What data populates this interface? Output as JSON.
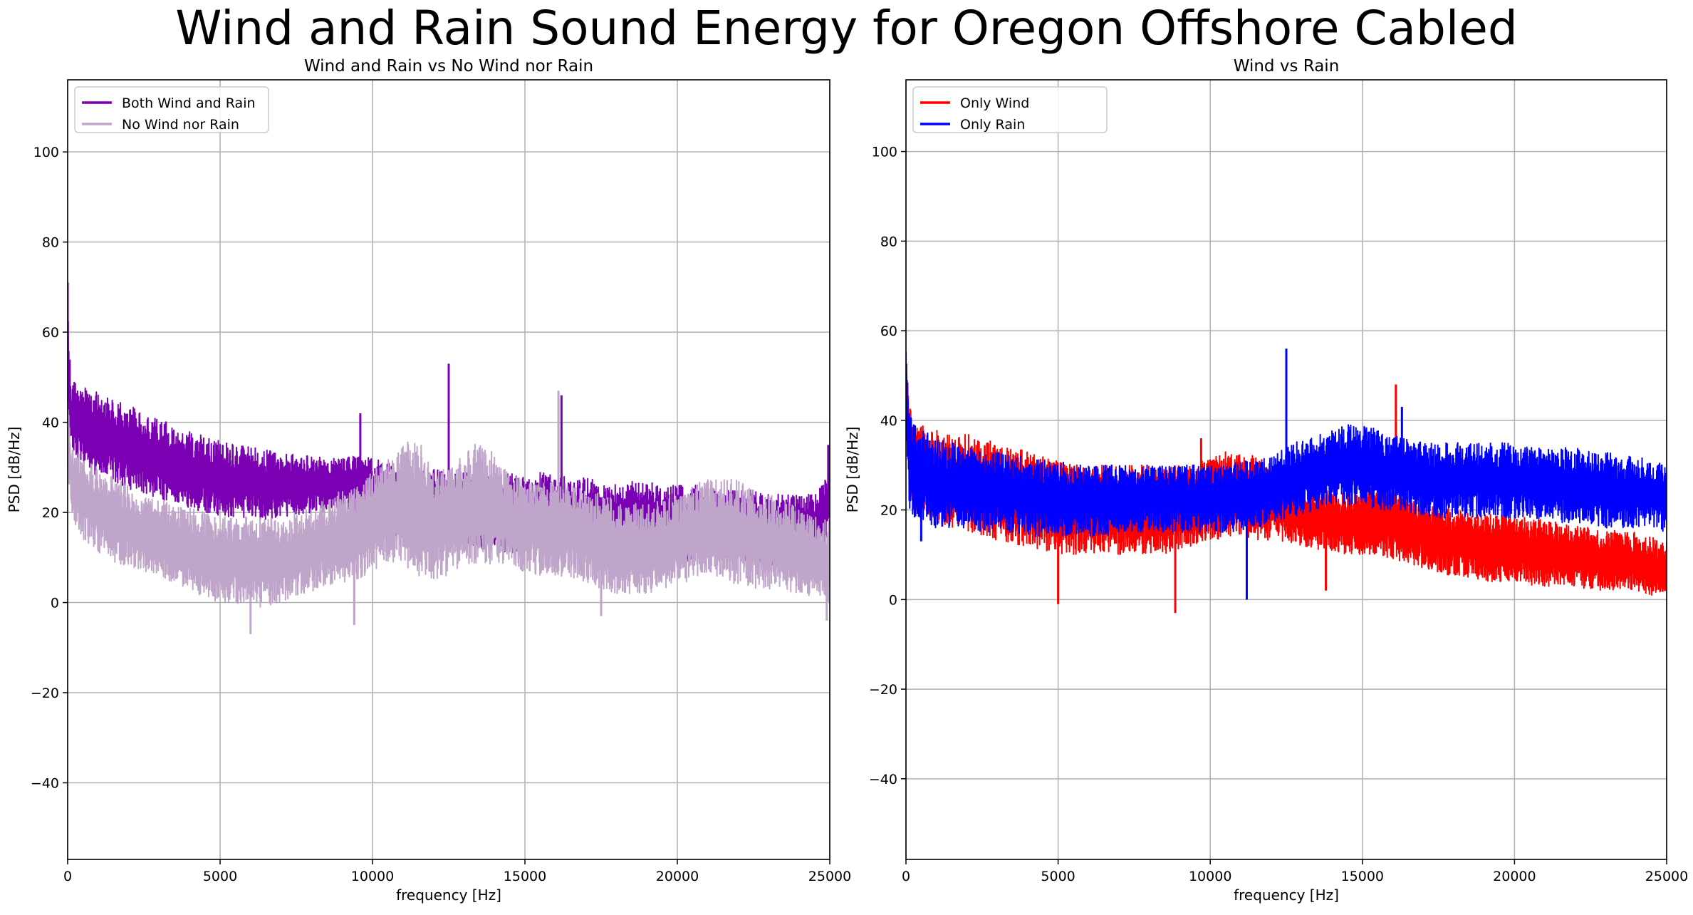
{
  "figure": {
    "suptitle": "Wind and Rain Sound Energy for Oregon Offshore Cabled"
  },
  "chart_data": [
    {
      "type": "line",
      "title": "Wind and Rain vs No Wind nor Rain",
      "xlabel": "frequency [Hz]",
      "ylabel": "PSD [dB/Hz]",
      "xlim": [
        0,
        25000
      ],
      "ylim": [
        -57,
        116
      ],
      "xticks": [
        0,
        5000,
        10000,
        15000,
        20000,
        25000
      ],
      "yticks": [
        -40,
        -20,
        0,
        20,
        40,
        60,
        80,
        100
      ],
      "grid": true,
      "legend_position": "top-left",
      "series": [
        {
          "name": "Both Wind and Rain",
          "color": "#7b00b4",
          "x": [
            0,
            100,
            200,
            500,
            1000,
            1500,
            2000,
            2500,
            3000,
            3500,
            4000,
            4500,
            5000,
            5500,
            6000,
            6500,
            7000,
            7500,
            8000,
            8500,
            9000,
            9500,
            10000,
            10500,
            11000,
            11500,
            12000,
            12500,
            13000,
            13500,
            14000,
            14500,
            15000,
            15500,
            16000,
            16500,
            17000,
            17500,
            18000,
            18500,
            19000,
            19500,
            20000,
            20500,
            21000,
            21500,
            22000,
            22500,
            23000,
            23500,
            24000,
            24500,
            25000
          ],
          "high": [
            71,
            50,
            49,
            48,
            47,
            45,
            44,
            42,
            41,
            39,
            38,
            37,
            36,
            35,
            35,
            34,
            33,
            33,
            33,
            32,
            32,
            33,
            32,
            31,
            31,
            30,
            30,
            29,
            29,
            29,
            28,
            29,
            28,
            29,
            28,
            28,
            28,
            27,
            27,
            27,
            27,
            26,
            26,
            26,
            26,
            25,
            25,
            25,
            24,
            24,
            24,
            24,
            30
          ],
          "low": [
            40,
            35,
            33,
            30,
            28,
            27,
            25,
            24,
            23,
            22,
            21,
            20,
            19,
            19,
            18,
            18,
            19,
            19,
            20,
            20,
            21,
            20,
            18,
            15,
            13,
            12,
            12,
            12,
            13,
            12,
            11,
            11,
            11,
            11,
            12,
            11,
            11,
            10,
            9,
            9,
            8,
            8,
            8,
            9,
            10,
            10,
            9,
            9,
            8,
            8,
            8,
            7,
            16
          ],
          "spikes": [
            {
              "x": 0,
              "y": 71
            },
            {
              "x": 9600,
              "y": 42
            },
            {
              "x": 12500,
              "y": 53
            },
            {
              "x": 16200,
              "y": 46
            },
            {
              "x": 24950,
              "y": 35
            }
          ]
        },
        {
          "name": "No Wind nor Rain",
          "color": "#bfa5c9",
          "x": [
            0,
            100,
            200,
            500,
            1000,
            1500,
            2000,
            2500,
            3000,
            3500,
            4000,
            4500,
            5000,
            5500,
            6000,
            6500,
            7000,
            7500,
            8000,
            8500,
            9000,
            9500,
            10000,
            10500,
            11000,
            11500,
            12000,
            12500,
            13000,
            13500,
            14000,
            14500,
            15000,
            15500,
            16000,
            16500,
            17000,
            17500,
            18000,
            18500,
            19000,
            19500,
            20000,
            20500,
            21000,
            21500,
            22000,
            22500,
            23000,
            23500,
            24000,
            24500,
            25000
          ],
          "high": [
            45,
            38,
            35,
            33,
            30,
            28,
            26,
            24,
            23,
            22,
            21,
            20,
            19,
            19,
            19,
            19,
            19,
            20,
            21,
            23,
            25,
            27,
            29,
            32,
            35,
            37,
            30,
            30,
            33,
            36,
            33,
            29,
            28,
            27,
            27,
            26,
            25,
            24,
            23,
            22,
            22,
            23,
            24,
            26,
            28,
            28,
            27,
            25,
            24,
            23,
            21,
            19,
            18
          ],
          "low": [
            30,
            22,
            18,
            14,
            11,
            9,
            8,
            7,
            6,
            4,
            3,
            1,
            0,
            0,
            -1,
            -1,
            0,
            1,
            2,
            3,
            4,
            5,
            7,
            9,
            8,
            6,
            5,
            6,
            8,
            9,
            8,
            7,
            7,
            6,
            6,
            5,
            4,
            3,
            2,
            2,
            2,
            3,
            4,
            5,
            6,
            5,
            4,
            3,
            3,
            2,
            2,
            1,
            0
          ],
          "spikes": [
            {
              "x": 6000,
              "y": -7
            },
            {
              "x": 9400,
              "y": -5
            },
            {
              "x": 16100,
              "y": 47
            },
            {
              "x": 17500,
              "y": -3
            },
            {
              "x": 24900,
              "y": -4
            }
          ]
        }
      ]
    },
    {
      "type": "line",
      "title": "Wind vs Rain",
      "xlabel": "frequency [Hz]",
      "ylabel": "PSD [dB/Hz]",
      "xlim": [
        0,
        25000
      ],
      "ylim": [
        -58,
        116
      ],
      "xticks": [
        0,
        5000,
        10000,
        15000,
        20000,
        25000
      ],
      "yticks": [
        -40,
        -20,
        0,
        20,
        40,
        60,
        80,
        100
      ],
      "grid": true,
      "legend_position": "top-left",
      "series": [
        {
          "name": "Only Wind",
          "color": "#ff0000",
          "x": [
            0,
            100,
            200,
            500,
            1000,
            1500,
            2000,
            2500,
            3000,
            3500,
            4000,
            4500,
            5000,
            5500,
            6000,
            6500,
            7000,
            7500,
            8000,
            8500,
            9000,
            9500,
            10000,
            10500,
            11000,
            11500,
            12000,
            12500,
            13000,
            13500,
            14000,
            14500,
            15000,
            15500,
            16000,
            16500,
            17000,
            17500,
            18000,
            18500,
            19000,
            19500,
            20000,
            20500,
            21000,
            21500,
            22000,
            22500,
            23000,
            23500,
            24000,
            24500,
            25000
          ],
          "high": [
            55,
            44,
            41,
            39,
            38,
            37,
            37,
            36,
            35,
            34,
            33,
            32,
            31,
            31,
            30,
            30,
            30,
            30,
            30,
            30,
            30,
            31,
            32,
            33,
            33,
            32,
            30,
            28,
            26,
            25,
            24,
            24,
            25,
            25,
            25,
            24,
            22,
            21,
            20,
            20,
            19,
            19,
            19,
            18,
            18,
            17,
            17,
            16,
            16,
            15,
            15,
            14,
            13
          ],
          "low": [
            40,
            25,
            22,
            18,
            17,
            16,
            15,
            14,
            13,
            12,
            12,
            11,
            10,
            10,
            10,
            10,
            10,
            10,
            10,
            10,
            11,
            12,
            13,
            14,
            14,
            13,
            13,
            13,
            12,
            11,
            11,
            10,
            10,
            10,
            9,
            8,
            7,
            6,
            5,
            5,
            4,
            4,
            4,
            3,
            3,
            3,
            3,
            2,
            2,
            2,
            2,
            1,
            0
          ],
          "spikes": [
            {
              "x": 5000,
              "y": -1
            },
            {
              "x": 8850,
              "y": -3
            },
            {
              "x": 9700,
              "y": 36
            },
            {
              "x": 13800,
              "y": 2
            },
            {
              "x": 16100,
              "y": 48
            }
          ]
        },
        {
          "name": "Only Rain",
          "color": "#0000ff",
          "x": [
            0,
            100,
            200,
            500,
            1000,
            1500,
            2000,
            2500,
            3000,
            3500,
            4000,
            4500,
            5000,
            5500,
            6000,
            6500,
            7000,
            7500,
            8000,
            8500,
            9000,
            9500,
            10000,
            10500,
            11000,
            11500,
            12000,
            12500,
            13000,
            13500,
            14000,
            14500,
            15000,
            15500,
            16000,
            16500,
            17000,
            17500,
            18000,
            18500,
            19000,
            19500,
            20000,
            20500,
            21000,
            21500,
            22000,
            22500,
            23000,
            23500,
            24000,
            24500,
            25000
          ],
          "high": [
            56,
            43,
            40,
            38,
            36,
            35,
            34,
            33,
            33,
            32,
            32,
            31,
            31,
            30,
            30,
            30,
            30,
            30,
            30,
            30,
            30,
            30,
            30,
            30,
            31,
            31,
            32,
            34,
            36,
            37,
            38,
            39,
            39,
            38,
            37,
            36,
            35,
            35,
            35,
            35,
            35,
            35,
            35,
            34,
            34,
            34,
            34,
            33,
            33,
            32,
            32,
            31,
            30
          ],
          "low": [
            35,
            20,
            18,
            17,
            16,
            16,
            16,
            15,
            15,
            15,
            14,
            14,
            14,
            14,
            14,
            14,
            15,
            15,
            15,
            15,
            15,
            15,
            15,
            15,
            15,
            16,
            17,
            18,
            19,
            20,
            21,
            21,
            21,
            20,
            20,
            19,
            19,
            18,
            18,
            18,
            18,
            18,
            18,
            18,
            18,
            17,
            17,
            17,
            16,
            16,
            16,
            16,
            15
          ],
          "spikes": [
            {
              "x": 500,
              "y": 13
            },
            {
              "x": 11200,
              "y": 0
            },
            {
              "x": 12500,
              "y": 56
            },
            {
              "x": 16300,
              "y": 43
            }
          ]
        }
      ]
    }
  ]
}
